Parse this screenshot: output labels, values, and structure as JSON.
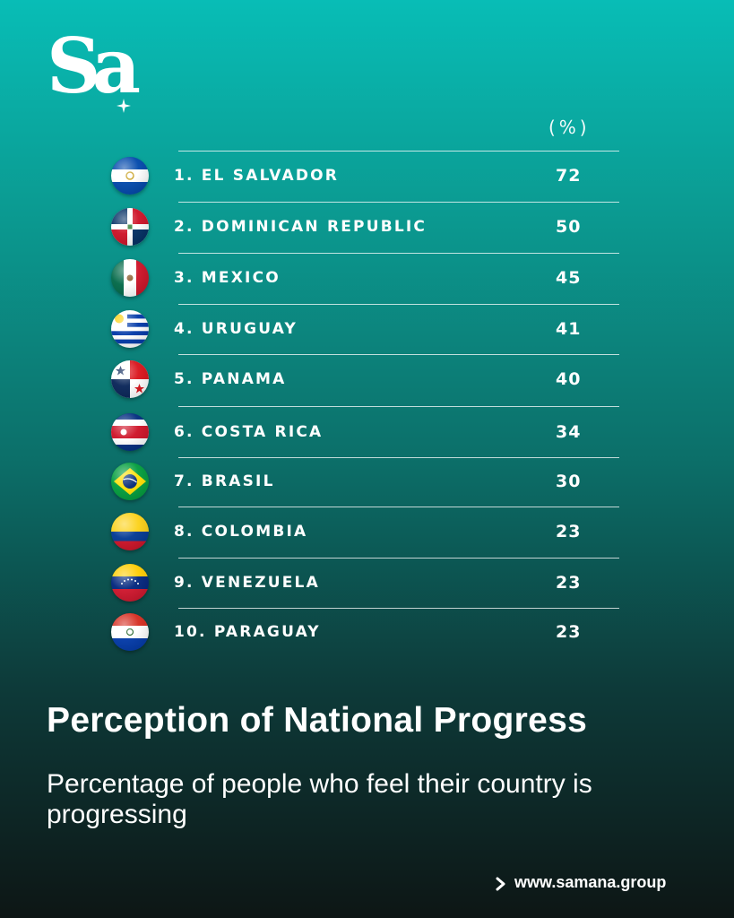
{
  "brand": {
    "logo_text": "Sa"
  },
  "footer": {
    "link_text": "www.samana.group",
    "arrow_icon": "chevron-right-icon"
  },
  "chart_data": {
    "type": "table",
    "title": "Perception of National Progress",
    "subtitle": "Percentage of people who feel their country is progressing",
    "unit_label": "(%)",
    "rows": [
      {
        "label": "1. EL SALVADOR",
        "value": 72,
        "flag": "el-salvador-flag-icon"
      },
      {
        "label": "2. DOMINICAN REPUBLIC",
        "value": 50,
        "flag": "dominican-republic-flag-icon"
      },
      {
        "label": "3. MEXICO",
        "value": 45,
        "flag": "mexico-flag-icon"
      },
      {
        "label": "4. URUGUAY",
        "value": 41,
        "flag": "uruguay-flag-icon"
      },
      {
        "label": "5. PANAMA",
        "value": 40,
        "flag": "panama-flag-icon"
      },
      {
        "label": "6. COSTA RICA",
        "value": 34,
        "flag": "costa-rica-flag-icon"
      },
      {
        "label": "7. BRASIL",
        "value": 30,
        "flag": "brazil-flag-icon"
      },
      {
        "label": "8. COLOMBIA",
        "value": 23,
        "flag": "colombia-flag-icon"
      },
      {
        "label": "9. VENEZUELA",
        "value": 23,
        "flag": "venezuela-flag-icon"
      },
      {
        "label": "10. PARAGUAY",
        "value": 23,
        "flag": "paraguay-flag-icon"
      }
    ]
  }
}
